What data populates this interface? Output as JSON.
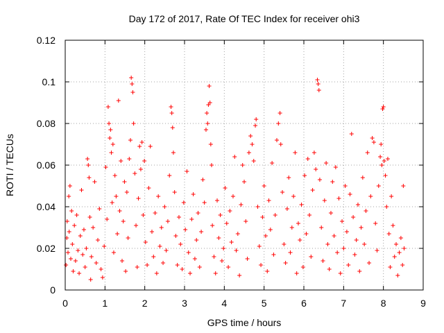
{
  "chart_data": {
    "type": "scatter",
    "title": "Day 172 of 2017, Rate Of TEC Index for receiver ohi3",
    "xlabel": "GPS time / hours",
    "ylabel": "ROTI / TECUs",
    "xlim": [
      0,
      9
    ],
    "ylim": [
      0,
      0.12
    ],
    "xticks": [
      "0",
      "1",
      "2",
      "3",
      "4",
      "5",
      "6",
      "7",
      "8",
      "9"
    ],
    "yticks": [
      "0",
      "0.02",
      "0.04",
      "0.06",
      "0.08",
      "0.1",
      "0.12"
    ],
    "grid": true,
    "marker": "+",
    "color": "#ff0000",
    "series": [
      {
        "name": "ROTI",
        "points": [
          [
            0.02,
            0.012
          ],
          [
            0.04,
            0.025
          ],
          [
            0.05,
            0.033
          ],
          [
            0.07,
            0.018
          ],
          [
            0.09,
            0.045
          ],
          [
            0.1,
            0.028
          ],
          [
            0.12,
            0.05
          ],
          [
            0.14,
            0.015
          ],
          [
            0.16,
            0.038
          ],
          [
            0.18,
            0.022
          ],
          [
            0.2,
            0.009
          ],
          [
            0.23,
            0.031
          ],
          [
            0.26,
            0.014
          ],
          [
            0.29,
            0.036
          ],
          [
            0.32,
            0.019
          ],
          [
            0.35,
            0.008
          ],
          [
            0.38,
            0.026
          ],
          [
            0.41,
            0.048
          ],
          [
            0.44,
            0.017
          ],
          [
            0.47,
            0.029
          ],
          [
            0.5,
            0.011
          ],
          [
            0.53,
            0.02
          ],
          [
            0.56,
            0.063
          ],
          [
            0.58,
            0.06
          ],
          [
            0.6,
            0.054
          ],
          [
            0.62,
            0.035
          ],
          [
            0.64,
            0.005
          ],
          [
            0.66,
            0.016
          ],
          [
            0.7,
            0.03
          ],
          [
            0.74,
            0.052
          ],
          [
            0.78,
            0.013
          ],
          [
            0.82,
            0.024
          ],
          [
            0.86,
            0.039
          ],
          [
            0.9,
            0.01
          ],
          [
            0.94,
            0.006
          ],
          [
            0.98,
            0.021
          ],
          [
            1.02,
            0.059
          ],
          [
            1.05,
            0.034
          ],
          [
            1.08,
            0.088
          ],
          [
            1.1,
            0.08
          ],
          [
            1.12,
            0.073
          ],
          [
            1.14,
            0.077
          ],
          [
            1.16,
            0.066
          ],
          [
            1.18,
            0.042
          ],
          [
            1.2,
            0.07
          ],
          [
            1.22,
            0.018
          ],
          [
            1.25,
            0.055
          ],
          [
            1.28,
            0.045
          ],
          [
            1.31,
            0.027
          ],
          [
            1.34,
            0.091
          ],
          [
            1.37,
            0.038
          ],
          [
            1.4,
            0.062
          ],
          [
            1.43,
            0.014
          ],
          [
            1.46,
            0.033
          ],
          [
            1.49,
            0.052
          ],
          [
            1.52,
            0.009
          ],
          [
            1.55,
            0.047
          ],
          [
            1.58,
            0.025
          ],
          [
            1.61,
            0.063
          ],
          [
            1.64,
            0.072
          ],
          [
            1.66,
            0.102
          ],
          [
            1.68,
            0.099
          ],
          [
            1.7,
            0.095
          ],
          [
            1.72,
            0.08
          ],
          [
            1.75,
            0.056
          ],
          [
            1.78,
            0.031
          ],
          [
            1.81,
            0.011
          ],
          [
            1.84,
            0.044
          ],
          [
            1.87,
            0.069
          ],
          [
            1.9,
            0.058
          ],
          [
            1.93,
            0.071
          ],
          [
            1.96,
            0.036
          ],
          [
            1.99,
            0.062
          ],
          [
            2.02,
            0.023
          ],
          [
            2.06,
            0.012
          ],
          [
            2.1,
            0.049
          ],
          [
            2.14,
            0.069
          ],
          [
            2.18,
            0.028
          ],
          [
            2.22,
            0.016
          ],
          [
            2.26,
            0.037
          ],
          [
            2.3,
            0.008
          ],
          [
            2.34,
            0.045
          ],
          [
            2.38,
            0.021
          ],
          [
            2.42,
            0.03
          ],
          [
            2.46,
            0.013
          ],
          [
            2.5,
            0.04
          ],
          [
            2.54,
            0.019
          ],
          [
            2.58,
            0.033
          ],
          [
            2.62,
            0.055
          ],
          [
            2.66,
            0.088
          ],
          [
            2.68,
            0.085
          ],
          [
            2.7,
            0.078
          ],
          [
            2.72,
            0.066
          ],
          [
            2.75,
            0.047
          ],
          [
            2.78,
            0.026
          ],
          [
            2.82,
            0.012
          ],
          [
            2.86,
            0.035
          ],
          [
            2.9,
            0.022
          ],
          [
            2.94,
            0.01
          ],
          [
            2.98,
            0.042
          ],
          [
            3.02,
            0.029
          ],
          [
            3.06,
            0.057
          ],
          [
            3.1,
            0.018
          ],
          [
            3.14,
            0.008
          ],
          [
            3.18,
            0.034
          ],
          [
            3.22,
            0.046
          ],
          [
            3.26,
            0.015
          ],
          [
            3.3,
            0.024
          ],
          [
            3.34,
            0.037
          ],
          [
            3.38,
            0.011
          ],
          [
            3.42,
            0.028
          ],
          [
            3.46,
            0.053
          ],
          [
            3.5,
            0.042
          ],
          [
            3.54,
            0.077
          ],
          [
            3.56,
            0.085
          ],
          [
            3.58,
            0.08
          ],
          [
            3.6,
            0.089
          ],
          [
            3.62,
            0.098
          ],
          [
            3.64,
            0.09
          ],
          [
            3.66,
            0.07
          ],
          [
            3.68,
            0.06
          ],
          [
            3.7,
            0.031
          ],
          [
            3.74,
            0.016
          ],
          [
            3.78,
            0.008
          ],
          [
            3.82,
            0.043
          ],
          [
            3.86,
            0.025
          ],
          [
            3.9,
            0.036
          ],
          [
            3.94,
            0.014
          ],
          [
            3.98,
            0.02
          ],
          [
            4.02,
            0.049
          ],
          [
            4.06,
            0.032
          ],
          [
            4.1,
            0.011
          ],
          [
            4.14,
            0.038
          ],
          [
            4.18,
            0.023
          ],
          [
            4.22,
            0.045
          ],
          [
            4.26,
            0.064
          ],
          [
            4.3,
            0.019
          ],
          [
            4.34,
            0.027
          ],
          [
            4.38,
            0.007
          ],
          [
            4.42,
            0.041
          ],
          [
            4.46,
            0.06
          ],
          [
            4.5,
            0.052
          ],
          [
            4.54,
            0.033
          ],
          [
            4.58,
            0.015
          ],
          [
            4.62,
            0.066
          ],
          [
            4.66,
            0.074
          ],
          [
            4.7,
            0.07
          ],
          [
            4.74,
            0.062
          ],
          [
            4.78,
            0.079
          ],
          [
            4.8,
            0.082
          ],
          [
            4.84,
            0.04
          ],
          [
            4.88,
            0.021
          ],
          [
            4.92,
            0.012
          ],
          [
            4.96,
            0.035
          ],
          [
            5.0,
            0.05
          ],
          [
            5.04,
            0.026
          ],
          [
            5.08,
            0.009
          ],
          [
            5.12,
            0.043
          ],
          [
            5.16,
            0.029
          ],
          [
            5.2,
            0.061
          ],
          [
            5.24,
            0.017
          ],
          [
            5.28,
            0.036
          ],
          [
            5.32,
            0.072
          ],
          [
            5.36,
            0.08
          ],
          [
            5.4,
            0.085
          ],
          [
            5.42,
            0.07
          ],
          [
            5.46,
            0.047
          ],
          [
            5.5,
            0.022
          ],
          [
            5.54,
            0.013
          ],
          [
            5.58,
            0.039
          ],
          [
            5.62,
            0.054
          ],
          [
            5.66,
            0.018
          ],
          [
            5.7,
            0.03
          ],
          [
            5.74,
            0.045
          ],
          [
            5.78,
            0.066
          ],
          [
            5.82,
            0.008
          ],
          [
            5.86,
            0.032
          ],
          [
            5.9,
            0.024
          ],
          [
            5.94,
            0.041
          ],
          [
            5.98,
            0.011
          ],
          [
            6.02,
            0.055
          ],
          [
            6.06,
            0.027
          ],
          [
            6.1,
            0.063
          ],
          [
            6.14,
            0.036
          ],
          [
            6.18,
            0.016
          ],
          [
            6.22,
            0.048
          ],
          [
            6.26,
            0.066
          ],
          [
            6.3,
            0.058
          ],
          [
            6.34,
            0.101
          ],
          [
            6.36,
            0.099
          ],
          [
            6.38,
            0.096
          ],
          [
            6.4,
            0.053
          ],
          [
            6.44,
            0.03
          ],
          [
            6.48,
            0.014
          ],
          [
            6.52,
            0.043
          ],
          [
            6.56,
            0.061
          ],
          [
            6.6,
            0.022
          ],
          [
            6.64,
            0.01
          ],
          [
            6.68,
            0.037
          ],
          [
            6.72,
            0.052
          ],
          [
            6.76,
            0.026
          ],
          [
            6.8,
            0.059
          ],
          [
            6.84,
            0.018
          ],
          [
            6.88,
            0.044
          ],
          [
            6.92,
            0.008
          ],
          [
            6.96,
            0.033
          ],
          [
            7.0,
            0.02
          ],
          [
            7.04,
            0.05
          ],
          [
            7.08,
            0.028
          ],
          [
            7.12,
            0.012
          ],
          [
            7.16,
            0.046
          ],
          [
            7.2,
            0.075
          ],
          [
            7.24,
            0.035
          ],
          [
            7.28,
            0.017
          ],
          [
            7.32,
            0.024
          ],
          [
            7.36,
            0.041
          ],
          [
            7.4,
            0.009
          ],
          [
            7.44,
            0.03
          ],
          [
            7.48,
            0.054
          ],
          [
            7.52,
            0.022
          ],
          [
            7.56,
            0.038
          ],
          [
            7.6,
            0.066
          ],
          [
            7.64,
            0.013
          ],
          [
            7.68,
            0.045
          ],
          [
            7.72,
            0.073
          ],
          [
            7.76,
            0.071
          ],
          [
            7.8,
            0.032
          ],
          [
            7.84,
            0.019
          ],
          [
            7.88,
            0.05
          ],
          [
            7.92,
            0.064
          ],
          [
            7.94,
            0.07
          ],
          [
            7.96,
            0.06
          ],
          [
            7.98,
            0.087
          ],
          [
            8.0,
            0.088
          ],
          [
            8.02,
            0.062
          ],
          [
            8.05,
            0.055
          ],
          [
            8.08,
            0.04
          ],
          [
            8.11,
            0.063
          ],
          [
            8.14,
            0.027
          ],
          [
            8.17,
            0.011
          ],
          [
            8.2,
            0.045
          ],
          [
            8.24,
            0.031
          ],
          [
            8.28,
            0.016
          ],
          [
            8.32,
            0.022
          ],
          [
            8.36,
            0.007
          ],
          [
            8.4,
            0.018
          ],
          [
            8.44,
            0.025
          ],
          [
            8.48,
            0.012
          ],
          [
            8.5,
            0.05
          ],
          [
            8.52,
            0.02
          ]
        ]
      }
    ]
  }
}
